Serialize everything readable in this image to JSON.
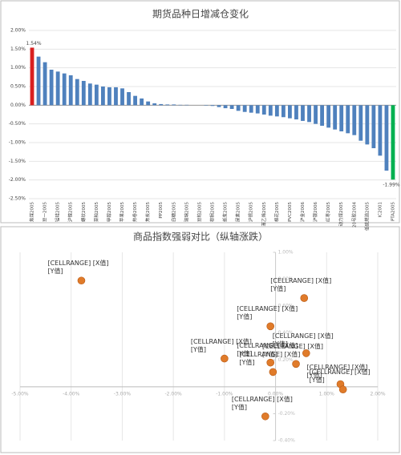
{
  "chart_data": [
    {
      "type": "bar",
      "title": "期货品种日增减仓变化",
      "categories": [
        "焦煤2005",
        null,
        "豆一2005",
        null,
        "锰硅2005",
        null,
        "沪镍2005",
        null,
        "螺纹2005",
        null,
        "菜粕2005",
        null,
        "甲醇2005",
        null,
        "苹果2005",
        null,
        "热卷2005",
        null,
        "焦炭2005",
        null,
        "PP2005",
        null,
        "白糖2005",
        null,
        "玻璃2005",
        null,
        "豆粕2005",
        null,
        "棕榈2005",
        null,
        "纸浆2005",
        null,
        "尿素2005",
        null,
        "沪锡2005",
        null,
        "苯乙烯2005",
        null,
        "棉花2005",
        null,
        "PVC2005",
        null,
        "沪金2006",
        null,
        "沪银2006",
        null,
        "红枣2005",
        null,
        "动力煤2005",
        null,
        "20号胶2004",
        null,
        "低硫燃油2005",
        null,
        "IC2001",
        null,
        "PTA2005"
      ],
      "values": [
        1.54,
        1.3,
        1.15,
        0.95,
        0.9,
        0.85,
        0.8,
        0.7,
        0.65,
        0.58,
        0.55,
        0.5,
        0.48,
        0.48,
        0.45,
        0.35,
        0.25,
        0.18,
        0.1,
        0.05,
        0.03,
        0.02,
        0.02,
        0.01,
        0.01,
        0.0,
        0.0,
        -0.01,
        -0.02,
        -0.05,
        -0.08,
        -0.1,
        -0.15,
        -0.18,
        -0.2,
        -0.22,
        -0.25,
        -0.28,
        -0.3,
        -0.32,
        -0.35,
        -0.38,
        -0.42,
        -0.45,
        -0.5,
        -0.55,
        -0.6,
        -0.65,
        -0.7,
        -0.75,
        -0.8,
        -0.95,
        -1.05,
        -1.15,
        -1.35,
        -1.75,
        -1.99
      ],
      "value_labels": [
        "1.54%",
        null,
        null,
        null,
        null,
        null,
        null,
        null,
        null,
        null,
        null,
        null,
        null,
        null,
        null,
        null,
        null,
        null,
        null,
        null,
        null,
        null,
        null,
        null,
        null,
        null,
        null,
        null,
        null,
        null,
        null,
        null,
        null,
        null,
        null,
        null,
        null,
        null,
        null,
        null,
        null,
        null,
        null,
        null,
        null,
        null,
        null,
        null,
        null,
        null,
        null,
        null,
        null,
        null,
        null,
        null,
        "-1.99%"
      ],
      "color": "#4f81bd",
      "max_color": "#d92020",
      "min_color": "#00b050",
      "ylim": [
        -2.5,
        2.0
      ],
      "yticks": [
        {
          "value": -2.5,
          "label": "-2.50%"
        },
        {
          "value": -2.0,
          "label": "-2.00%"
        },
        {
          "value": -1.5,
          "label": "-1.50%"
        },
        {
          "value": -1.0,
          "label": "-1.00%"
        },
        {
          "value": -0.5,
          "label": "-0.50%"
        },
        {
          "value": 0,
          "label": "0.00%"
        },
        {
          "value": 0.5,
          "label": "0.50%"
        },
        {
          "value": 1.0,
          "label": "1.00%"
        },
        {
          "value": 1.5,
          "label": "1.50%"
        },
        {
          "value": 2.0,
          "label": "2.00%"
        }
      ]
    },
    {
      "type": "scatter",
      "title": "商品指数强弱对比（纵轴涨跌）",
      "x": [
        -3.8,
        0.56,
        -0.1,
        -1.0,
        -0.1,
        0.4,
        0.6,
        -0.05,
        1.27,
        1.32,
        -0.2
      ],
      "values": [
        0.79,
        0.66,
        0.45,
        0.21,
        0.18,
        0.17,
        0.25,
        0.11,
        0.02,
        -0.02,
        -0.22
      ],
      "value_labels": [
        "[CELLRANGE] [X值] [Y值]",
        "[CELLRANGE] [X值] [Y值]",
        "[CELLRANGE] [X值] [Y值]",
        "[CELLRANGE] [X值] [Y值]",
        "[CELLRANGE] [X值] [Y值]",
        "[CELLRANGE] [X值] [Y值]",
        "[CELLRANGE] [X值] [Y值]",
        "[CELLRANGE] [X值] [Y值]",
        "[CELLRANGE] [X值] [Y值]",
        "[CELLRANGE] [X值] [Y值]",
        "[CELLRANGE] [X值] [Y值]"
      ],
      "color": "#e07b2a",
      "xlim": [
        -5,
        2
      ],
      "xticks": [
        {
          "value": -5,
          "label": "-5.00%"
        },
        {
          "value": -4,
          "label": "-4.00%"
        },
        {
          "value": -3,
          "label": "-3.00%"
        },
        {
          "value": -2,
          "label": "-2.00%"
        },
        {
          "value": -1,
          "label": "-1.00%"
        },
        {
          "value": 0,
          "label": "0.00%"
        },
        {
          "value": 1,
          "label": "1.00%"
        },
        {
          "value": 2,
          "label": "2.00%"
        }
      ],
      "ylim": [
        -0.4,
        1.0
      ],
      "yticks": [
        {
          "value": -0.4,
          "label": "-0.40%"
        },
        {
          "value": -0.2,
          "label": "-0.20%"
        },
        {
          "value": 0.2,
          "label": "0.20%"
        },
        {
          "value": 0.4,
          "label": "0.40%"
        },
        {
          "value": 0.6,
          "label": "0.60%"
        },
        {
          "value": 0.8,
          "label": "0.80%"
        },
        {
          "value": 1.0,
          "label": "1.00%"
        }
      ]
    }
  ]
}
